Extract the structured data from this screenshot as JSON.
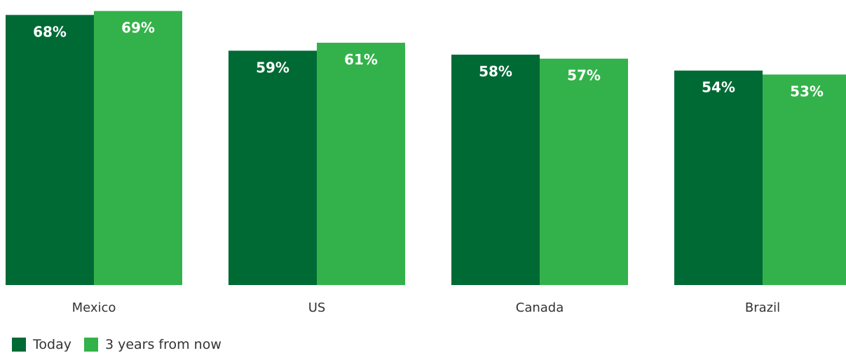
{
  "chart_data": {
    "type": "bar",
    "categories": [
      "Mexico",
      "US",
      "Canada",
      "Brazil"
    ],
    "series": [
      {
        "name": "Today",
        "color": "#006a35",
        "values": [
          68,
          59,
          58,
          54
        ],
        "labels": [
          "68%",
          "59%",
          "58%",
          "54%"
        ]
      },
      {
        "name": "3 years from now",
        "color": "#33b24b",
        "values": [
          69,
          61,
          57,
          53
        ],
        "labels": [
          "69%",
          "61%",
          "57%",
          "53%"
        ]
      }
    ],
    "title": "",
    "xlabel": "",
    "ylabel": "",
    "ylim": [
      0,
      70
    ],
    "grid": false,
    "legend_position": "bottom-left"
  }
}
